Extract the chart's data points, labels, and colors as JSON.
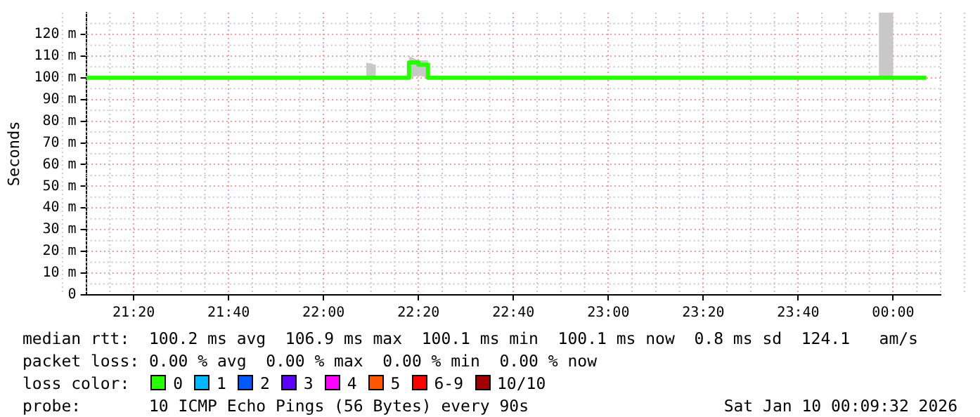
{
  "chart_data": {
    "type": "step",
    "ylabel": "Seconds",
    "xlim": [
      21.1667,
      24.1667
    ],
    "xticks": [
      {
        "value": 21.3333,
        "label": "21:20"
      },
      {
        "value": 21.6667,
        "label": "21:40"
      },
      {
        "value": 22,
        "label": "22:00"
      },
      {
        "value": 22.3333,
        "label": "22:20"
      },
      {
        "value": 22.6667,
        "label": "22:40"
      },
      {
        "value": 23,
        "label": "23:00"
      },
      {
        "value": 23.3333,
        "label": "23:20"
      },
      {
        "value": 23.6667,
        "label": "23:40"
      },
      {
        "value": 24,
        "label": "00:00"
      }
    ],
    "ylim": [
      0,
      130
    ],
    "yticks": [
      0,
      {
        "value": 10,
        "label": "10 m"
      },
      {
        "value": 20,
        "label": "20 m"
      },
      {
        "value": 30,
        "label": "30 m"
      },
      {
        "value": 40,
        "label": "40 m"
      },
      {
        "value": 50,
        "label": "50 m"
      },
      {
        "value": 60,
        "label": "60 m"
      },
      {
        "value": 70,
        "label": "70 m"
      },
      {
        "value": 80,
        "label": "80 m"
      },
      {
        "value": 90,
        "label": "90 m"
      },
      {
        "value": 100,
        "label": "100 m"
      },
      {
        "value": 110,
        "label": "110 m"
      },
      {
        "value": 120,
        "label": "120 m"
      }
    ],
    "grid": true,
    "legend": "bottom",
    "legend_title": "loss color:",
    "series": [
      {
        "name": "0",
        "color": "#26ff00",
        "x": [
          21.1667,
          22.15,
          22.1833,
          22.2,
          22.3,
          22.3333,
          22.3667,
          22.3833,
          23.95,
          24.0,
          24.1167
        ],
        "values": [
          100,
          100,
          100,
          100,
          107,
          106,
          100,
          100,
          100,
          100,
          100
        ],
        "lower": [
          null,
          100,
          100,
          null,
          100,
          101,
          100,
          null,
          100,
          100,
          null
        ],
        "upper": [
          null,
          107,
          106,
          null,
          110,
          108,
          108,
          null,
          130,
          130,
          null
        ]
      },
      {
        "name": "1",
        "color": "#00b8ff"
      },
      {
        "name": "2",
        "color": "#0059ff"
      },
      {
        "name": "3",
        "color": "#5e00ff"
      },
      {
        "name": "4",
        "color": "#ff00ff"
      },
      {
        "name": "5",
        "color": "#ff5500"
      },
      {
        "name": "6-9",
        "color": "#ff0000"
      },
      {
        "name": "10/10",
        "color": "#a10000"
      }
    ],
    "annotations": [
      "median rtt:  100.2 ms avg  106.9 ms max  100.1 ms min  100.1 ms now  0.8 ms sd  124.1   am/s",
      "packet loss: 0.00 % avg  0.00 % max  0.00 % min  0.00 % now",
      "probe:       10 ICMP Echo Pings (56 Bytes) every 90s",
      "Sat Jan 10 00:09:32 2026"
    ]
  }
}
